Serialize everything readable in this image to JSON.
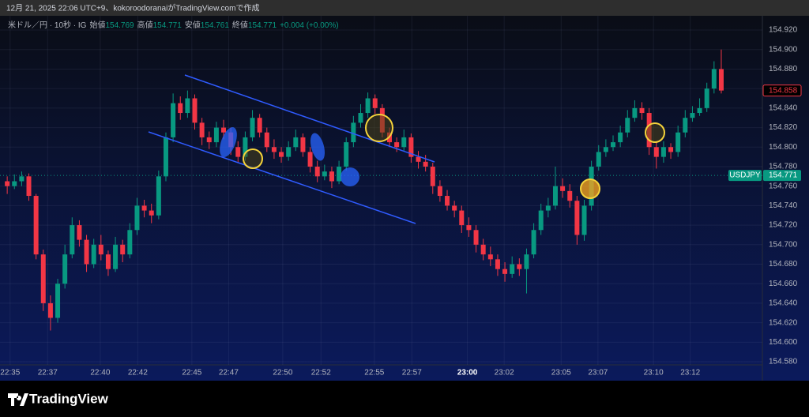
{
  "header": {
    "credit": "12月 21, 2025 22:06 UTC+9、kokoroodoranaiがTradingView.comで作成",
    "symbol": "米ドル／円 · 10秒 · IG",
    "ohlc": [
      {
        "label": "始値",
        "value": "154.769"
      },
      {
        "label": "高値",
        "value": "154.771"
      },
      {
        "label": "安値",
        "value": "154.761"
      },
      {
        "label": "終値",
        "value": "154.771"
      }
    ],
    "change": "+0.004 (+0.00%)"
  },
  "footer": {
    "brand": "TradingView"
  },
  "chart_data": {
    "type": "candlestick",
    "symbol": "USDJPY",
    "up_color": "#089981",
    "down_color": "#f23645",
    "ylim": [
      154.5606,
      154.9346
    ],
    "yticks": [
      {
        "value": 154.92,
        "label": "154.920"
      },
      {
        "value": 154.9,
        "label": "154.900"
      },
      {
        "value": 154.88,
        "label": "154.880"
      },
      {
        "value": 154.86,
        "label": "154.860"
      },
      {
        "value": 154.84,
        "label": "154.840"
      },
      {
        "value": 154.82,
        "label": "154.820"
      },
      {
        "value": 154.8,
        "label": "154.800"
      },
      {
        "value": 154.78,
        "label": "154.780"
      },
      {
        "value": 154.76,
        "label": "154.760"
      },
      {
        "value": 154.74,
        "label": "154.740"
      },
      {
        "value": 154.72,
        "label": "154.720"
      },
      {
        "value": 154.7,
        "label": "154.700"
      },
      {
        "value": 154.68,
        "label": "154.680"
      },
      {
        "value": 154.66,
        "label": "154.660"
      },
      {
        "value": 154.64,
        "label": "154.640"
      },
      {
        "value": 154.62,
        "label": "154.620"
      },
      {
        "value": 154.6,
        "label": "154.600"
      },
      {
        "value": 154.58,
        "label": "154.580"
      }
    ],
    "xlim": [
      -1,
      104.7
    ],
    "xticks": [
      {
        "value": 0.4,
        "label": "22:35"
      },
      {
        "value": 5.6,
        "label": "22:37"
      },
      {
        "value": 12.9,
        "label": "22:40"
      },
      {
        "value": 18.1,
        "label": "22:42"
      },
      {
        "value": 25.6,
        "label": "22:45"
      },
      {
        "value": 30.7,
        "label": "22:47"
      },
      {
        "value": 38.2,
        "label": "22:50"
      },
      {
        "value": 43.5,
        "label": "22:52"
      },
      {
        "value": 50.9,
        "label": "22:55"
      },
      {
        "value": 56.1,
        "label": "22:57"
      },
      {
        "value": 63.8,
        "label": "23:00"
      },
      {
        "value": 68.9,
        "label": "23:02"
      },
      {
        "value": 76.8,
        "label": "23:05"
      },
      {
        "value": 81.9,
        "label": "23:07"
      },
      {
        "value": 89.6,
        "label": "23:10"
      },
      {
        "value": 94.7,
        "label": "23:12"
      }
    ],
    "price_labels": [
      {
        "value": 154.858,
        "label": "154.858",
        "color": "#f23645"
      },
      {
        "value": 154.771,
        "label": "154.771",
        "color": "#089981"
      }
    ],
    "ohlc": [
      [
        154.765,
        154.77,
        154.752,
        154.76
      ],
      [
        154.76,
        154.772,
        154.757,
        154.765
      ],
      [
        154.765,
        154.775,
        154.76,
        154.77
      ],
      [
        154.77,
        154.773,
        154.745,
        154.75
      ],
      [
        154.75,
        154.752,
        154.685,
        154.69
      ],
      [
        154.69,
        154.695,
        154.632,
        154.64
      ],
      [
        154.64,
        154.648,
        154.612,
        154.625
      ],
      [
        154.625,
        154.665,
        154.62,
        154.66
      ],
      [
        154.66,
        154.7,
        154.655,
        154.69
      ],
      [
        154.69,
        154.728,
        154.686,
        154.72
      ],
      [
        154.72,
        154.725,
        154.698,
        154.705
      ],
      [
        154.705,
        154.71,
        154.672,
        154.68
      ],
      [
        154.68,
        154.706,
        154.676,
        154.7
      ],
      [
        154.7,
        154.71,
        154.684,
        154.69
      ],
      [
        154.69,
        154.694,
        154.668,
        154.675
      ],
      [
        154.675,
        154.708,
        154.672,
        154.7
      ],
      [
        154.7,
        154.705,
        154.682,
        154.69
      ],
      [
        154.69,
        154.722,
        154.686,
        154.715
      ],
      [
        154.715,
        154.748,
        154.71,
        154.74
      ],
      [
        154.74,
        154.746,
        154.728,
        154.735
      ],
      [
        154.735,
        154.742,
        154.722,
        154.73
      ],
      [
        154.73,
        154.776,
        154.726,
        154.77
      ],
      [
        154.77,
        154.815,
        154.765,
        154.81
      ],
      [
        154.81,
        154.855,
        154.805,
        154.845
      ],
      [
        154.845,
        154.852,
        154.828,
        154.835
      ],
      [
        154.835,
        154.858,
        154.83,
        154.85
      ],
      [
        154.85,
        154.854,
        154.818,
        154.825
      ],
      [
        154.825,
        154.83,
        154.802,
        154.81
      ],
      [
        154.81,
        154.816,
        154.798,
        154.805
      ],
      [
        154.805,
        154.826,
        154.8,
        154.82
      ],
      [
        154.82,
        154.828,
        154.808,
        154.815
      ],
      [
        154.815,
        154.82,
        154.792,
        154.8
      ],
      [
        154.8,
        154.806,
        154.784,
        154.79
      ],
      [
        154.79,
        154.816,
        154.786,
        154.81
      ],
      [
        154.81,
        154.838,
        154.806,
        154.83
      ],
      [
        154.83,
        154.834,
        154.81,
        154.815
      ],
      [
        154.815,
        154.82,
        154.795,
        154.8
      ],
      [
        154.8,
        154.808,
        154.788,
        154.795
      ],
      [
        154.795,
        154.8,
        154.784,
        154.79
      ],
      [
        154.79,
        154.806,
        154.786,
        154.8
      ],
      [
        154.8,
        154.818,
        154.796,
        154.81
      ],
      [
        154.81,
        154.814,
        154.79,
        154.795
      ],
      [
        154.795,
        154.8,
        154.774,
        154.78
      ],
      [
        154.78,
        154.786,
        154.764,
        154.77
      ],
      [
        154.77,
        154.782,
        154.766,
        154.775
      ],
      [
        154.775,
        154.78,
        154.758,
        154.765
      ],
      [
        154.765,
        154.786,
        154.762,
        154.78
      ],
      [
        154.78,
        154.81,
        154.776,
        154.805
      ],
      [
        154.805,
        154.832,
        154.8,
        154.825
      ],
      [
        154.825,
        154.844,
        154.82,
        154.835
      ],
      [
        154.835,
        154.856,
        154.83,
        154.85
      ],
      [
        154.85,
        154.854,
        154.834,
        154.84
      ],
      [
        154.84,
        154.844,
        154.81,
        154.815
      ],
      [
        154.815,
        154.82,
        154.8,
        154.805
      ],
      [
        154.805,
        154.81,
        154.795,
        154.8
      ],
      [
        154.8,
        154.818,
        154.796,
        154.81
      ],
      [
        154.81,
        154.814,
        154.784,
        154.79
      ],
      [
        154.79,
        154.796,
        154.778,
        154.785
      ],
      [
        154.785,
        154.792,
        154.775,
        154.78
      ],
      [
        154.78,
        154.784,
        154.752,
        154.76
      ],
      [
        154.76,
        154.766,
        154.744,
        154.75
      ],
      [
        154.75,
        154.756,
        154.735,
        154.74
      ],
      [
        154.74,
        154.745,
        154.728,
        154.735
      ],
      [
        154.735,
        154.74,
        154.712,
        154.72
      ],
      [
        154.72,
        154.728,
        154.708,
        154.715
      ],
      [
        154.715,
        154.72,
        154.692,
        154.7
      ],
      [
        154.7,
        154.706,
        154.684,
        154.69
      ],
      [
        154.69,
        154.698,
        154.678,
        154.685
      ],
      [
        154.685,
        154.69,
        154.668,
        154.675
      ],
      [
        154.675,
        154.682,
        154.662,
        154.67
      ],
      [
        154.67,
        154.688,
        154.666,
        154.68
      ],
      [
        154.68,
        154.686,
        154.668,
        154.675
      ],
      [
        154.675,
        154.696,
        154.65,
        154.69
      ],
      [
        154.69,
        154.722,
        154.686,
        154.715
      ],
      [
        154.715,
        154.742,
        154.71,
        154.735
      ],
      [
        154.735,
        154.748,
        154.728,
        154.74
      ],
      [
        154.74,
        154.78,
        154.736,
        154.76
      ],
      [
        154.76,
        154.768,
        154.748,
        154.755
      ],
      [
        154.755,
        154.762,
        154.738,
        154.745
      ],
      [
        154.745,
        154.75,
        154.7,
        154.71
      ],
      [
        154.71,
        154.746,
        154.704,
        154.74
      ],
      [
        154.74,
        154.786,
        154.735,
        154.78
      ],
      [
        154.78,
        154.802,
        154.776,
        154.795
      ],
      [
        154.795,
        154.808,
        154.79,
        154.8
      ],
      [
        154.8,
        154.812,
        154.796,
        154.805
      ],
      [
        154.805,
        154.822,
        154.8,
        154.815
      ],
      [
        154.815,
        154.838,
        154.81,
        154.83
      ],
      [
        154.83,
        154.848,
        154.826,
        154.84
      ],
      [
        154.84,
        154.846,
        154.828,
        154.835
      ],
      [
        154.835,
        154.84,
        154.792,
        154.8
      ],
      [
        154.8,
        154.806,
        154.778,
        154.79
      ],
      [
        154.79,
        154.806,
        154.784,
        154.8
      ],
      [
        154.8,
        154.804,
        154.788,
        154.795
      ],
      [
        154.795,
        154.822,
        154.79,
        154.815
      ],
      [
        154.815,
        154.838,
        154.81,
        154.83
      ],
      [
        154.83,
        154.842,
        154.826,
        154.835
      ],
      [
        154.835,
        154.85,
        154.832,
        154.84
      ],
      [
        154.84,
        154.866,
        154.836,
        154.86
      ],
      [
        154.86,
        154.888,
        154.855,
        154.88
      ],
      [
        154.88,
        154.9,
        154.855,
        154.858
      ]
    ]
  }
}
